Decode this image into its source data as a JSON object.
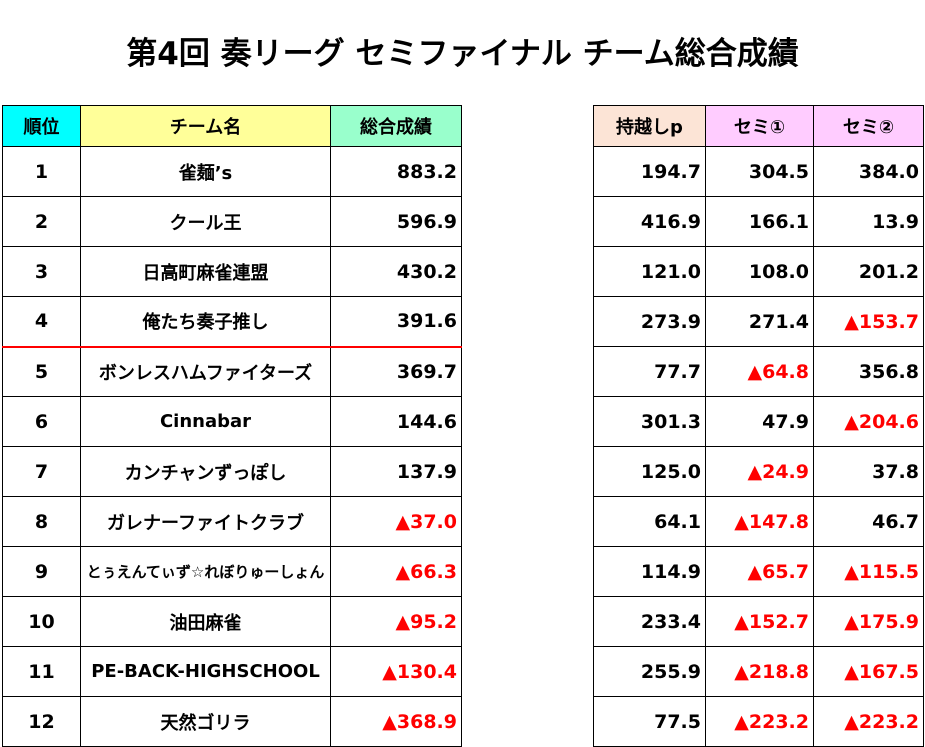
{
  "title": "第4回 奏リーグ セミファイナル チーム総合成績",
  "headers": {
    "rank": "順位",
    "team": "チーム名",
    "total": "総合成績",
    "carry": "持越しp",
    "semi1": "セミ①",
    "semi2": "セミ②"
  },
  "rows": [
    {
      "rank": "1",
      "team": "雀麺’s",
      "total": "883.2",
      "carry": "194.7",
      "semi1": "304.5",
      "semi2": "384.0"
    },
    {
      "rank": "2",
      "team": "クール王",
      "total": "596.9",
      "carry": "416.9",
      "semi1": "166.1",
      "semi2": "13.9"
    },
    {
      "rank": "3",
      "team": "日高町麻雀連盟",
      "total": "430.2",
      "carry": "121.0",
      "semi1": "108.0",
      "semi2": "201.2"
    },
    {
      "rank": "4",
      "team": "俺たち奏子推し",
      "total": "391.6",
      "carry": "273.9",
      "semi1": "271.4",
      "semi2": "▲153.7"
    },
    {
      "rank": "5",
      "team": "ボンレスハムファイターズ",
      "total": "369.7",
      "carry": "77.7",
      "semi1": "▲64.8",
      "semi2": "356.8"
    },
    {
      "rank": "6",
      "team": "Cinnabar",
      "total": "144.6",
      "carry": "301.3",
      "semi1": "47.9",
      "semi2": "▲204.6"
    },
    {
      "rank": "7",
      "team": "カンチャンずっぽし",
      "total": "137.9",
      "carry": "125.0",
      "semi1": "▲24.9",
      "semi2": "37.8"
    },
    {
      "rank": "8",
      "team": "ガレナーファイトクラブ",
      "total": "▲37.0",
      "carry": "64.1",
      "semi1": "▲147.8",
      "semi2": "46.7"
    },
    {
      "rank": "9",
      "team": "とぅえんてぃず☆れぼりゅーしょん",
      "total": "▲66.3",
      "carry": "114.9",
      "semi1": "▲65.7",
      "semi2": "▲115.5"
    },
    {
      "rank": "10",
      "team": "油田麻雀",
      "total": "▲95.2",
      "carry": "233.4",
      "semi1": "▲152.7",
      "semi2": "▲175.9"
    },
    {
      "rank": "11",
      "team": "PE-BACK-HIGHSCHOOL",
      "total": "▲130.4",
      "carry": "255.9",
      "semi1": "▲218.8",
      "semi2": "▲167.5"
    },
    {
      "rank": "12",
      "team": "天然ゴリラ",
      "total": "▲368.9",
      "carry": "77.5",
      "semi1": "▲223.2",
      "semi2": "▲223.2"
    }
  ],
  "colors": {
    "rank_header": "#00ffff",
    "team_header": "#ffff99",
    "total_header": "#99ffcc",
    "carry_header": "#fce4d6",
    "semi_header": "#ffccff",
    "negative": "#ff0000",
    "cutoff_line": "#ff0000"
  }
}
